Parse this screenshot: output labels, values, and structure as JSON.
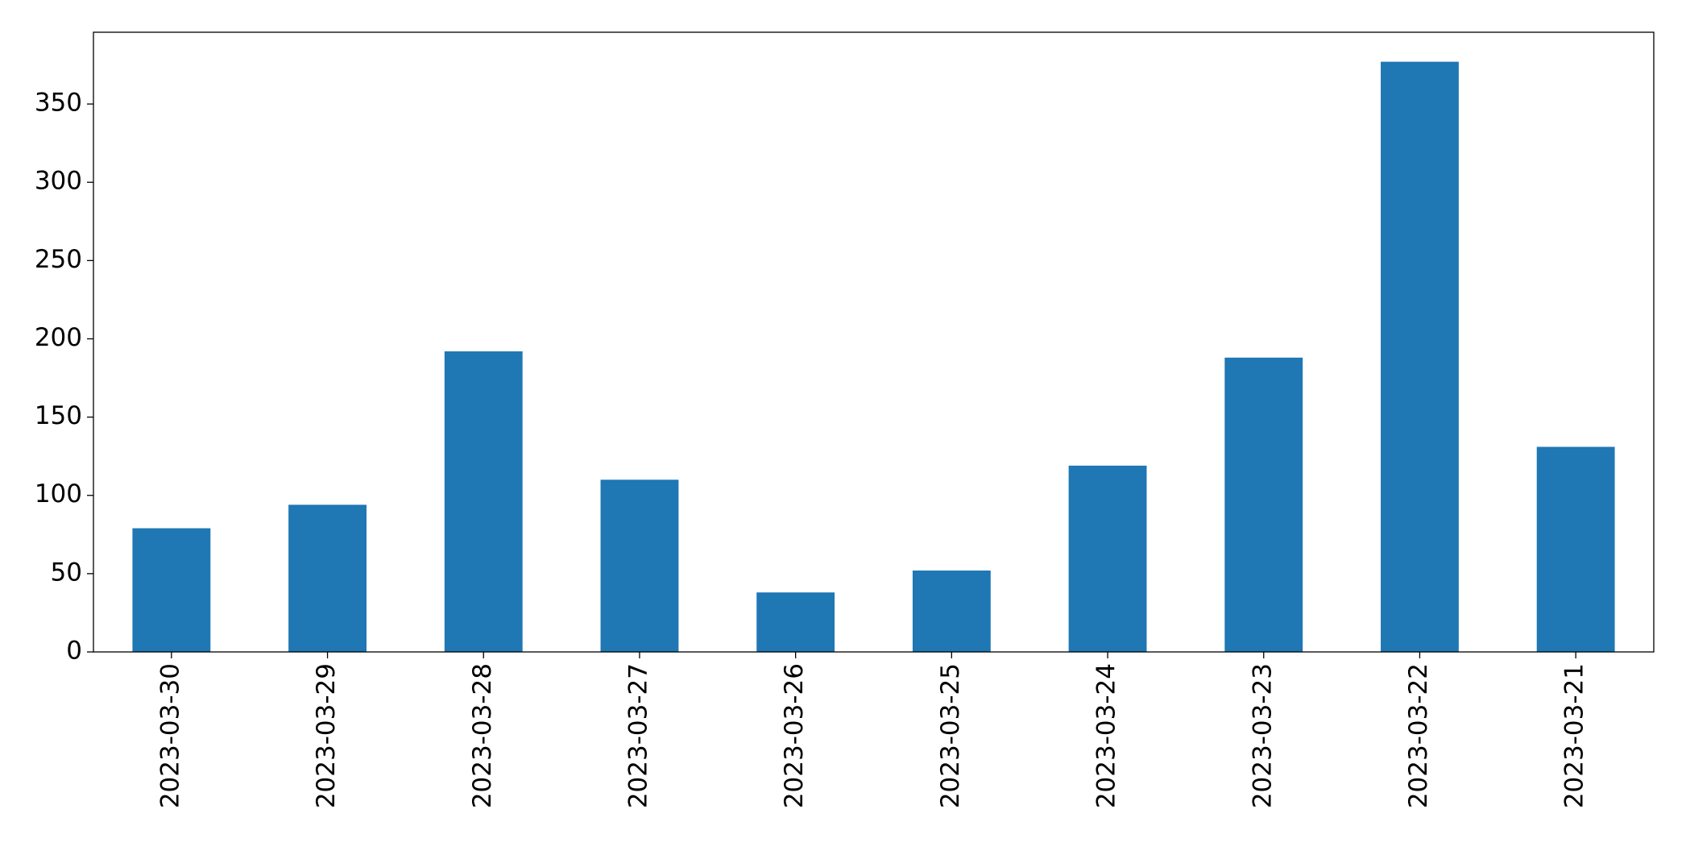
{
  "chart_data": {
    "type": "bar",
    "categories": [
      "2023-03-30",
      "2023-03-29",
      "2023-03-28",
      "2023-03-27",
      "2023-03-26",
      "2023-03-25",
      "2023-03-24",
      "2023-03-23",
      "2023-03-22",
      "2023-03-21"
    ],
    "values": [
      79,
      94,
      192,
      110,
      38,
      52,
      119,
      188,
      377,
      131
    ],
    "color": "#1f77b4",
    "ylim": [
      0,
      395.85
    ],
    "yticks": [
      0,
      50,
      100,
      150,
      200,
      250,
      300,
      350
    ],
    "grid": false
  }
}
